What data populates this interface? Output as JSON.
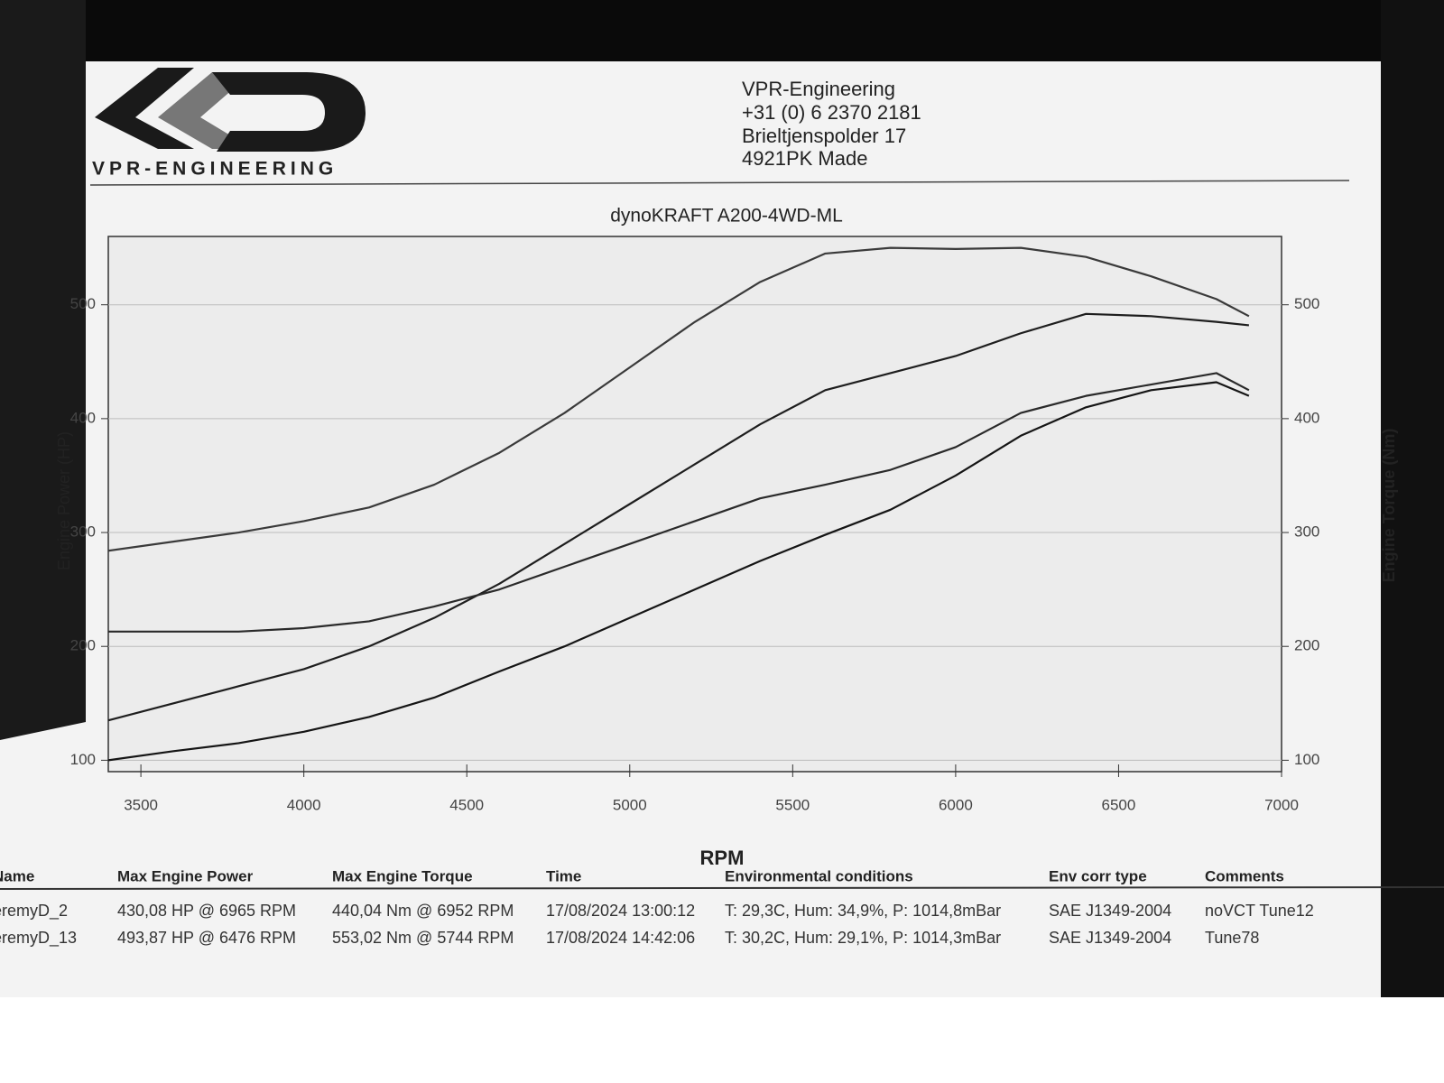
{
  "header": {
    "logo_text": "VPR-ENGINEERING",
    "company": "VPR-Engineering",
    "phone": "+31 (0) 6 2370 2181",
    "street": "Brieltjenspolder 17",
    "city": "4921PK Made"
  },
  "chart_data": {
    "type": "line",
    "title": "dynoKRAFT A200-4WD-ML",
    "x_label": "RPM",
    "y_label": "Engine Power (HP)",
    "y2_label": "Engine Torque (Nm)",
    "x": [
      3400,
      3600,
      3800,
      4000,
      4200,
      4400,
      4600,
      4800,
      5000,
      5200,
      5400,
      5600,
      5800,
      6000,
      6200,
      6400,
      6600,
      6800,
      6900
    ],
    "series": [
      {
        "color": "#3a3a3a",
        "axis": "y2",
        "values": [
          284,
          292,
          300,
          310,
          322,
          342,
          370,
          405,
          445,
          485,
          520,
          545,
          550,
          549,
          550,
          542,
          525,
          505,
          490
        ]
      },
      {
        "color": "#1e1e1e",
        "values": [
          135,
          150,
          165,
          180,
          200,
          225,
          255,
          290,
          325,
          360,
          395,
          425,
          440,
          455,
          475,
          492,
          490,
          485,
          482
        ]
      },
      {
        "color": "#2a2a2a",
        "axis": "y2",
        "values": [
          213,
          213,
          213,
          216,
          222,
          235,
          250,
          270,
          290,
          310,
          330,
          342,
          355,
          375,
          405,
          420,
          430,
          440,
          425
        ]
      },
      {
        "color": "#151515",
        "values": [
          100,
          108,
          115,
          125,
          138,
          155,
          178,
          200,
          225,
          250,
          275,
          298,
          320,
          350,
          385,
          410,
          425,
          432,
          420
        ]
      }
    ],
    "xlim": [
      3400,
      7000
    ],
    "xticks": [
      3500,
      4000,
      4500,
      5000,
      5500,
      6000,
      6500,
      7000
    ],
    "ylim": [
      90,
      560
    ],
    "yticks": [
      100,
      200,
      300,
      400,
      500
    ],
    "y2lim": [
      90,
      560
    ],
    "y2ticks": [
      100,
      200,
      300,
      400,
      500
    ],
    "grid": true
  },
  "table": {
    "headers": [
      "Name",
      "Max Engine Power",
      "Max Engine Torque",
      "Time",
      "Environmental conditions",
      "Env corr type",
      "Comments"
    ],
    "rows": [
      [
        "eremyD_2",
        "430,08 HP @ 6965 RPM",
        "440,04 Nm @ 6952 RPM",
        "17/08/2024 13:00:12",
        "T: 29,3C, Hum: 34,9%, P: 1014,8mBar",
        "SAE J1349-2004",
        "noVCT Tune12"
      ],
      [
        "eremyD_13",
        "493,87 HP @ 6476 RPM",
        "553,02 Nm @ 5744 RPM",
        "17/08/2024 14:42:06",
        "T: 30,2C, Hum: 29,1%, P: 1014,3mBar",
        "SAE J1349-2004",
        "Tune78"
      ]
    ]
  }
}
